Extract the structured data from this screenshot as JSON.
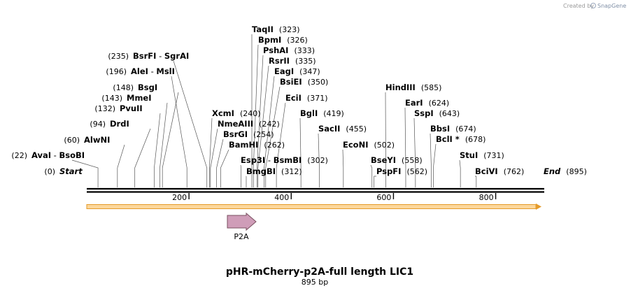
{
  "credit": {
    "prefix": "Created by",
    "brand": "SnapGene"
  },
  "map": {
    "title": "pHR-mCherry-p2A-full length LIC1",
    "length_text": "895 bp",
    "bp_total": 895,
    "ticks": [
      200,
      400,
      600,
      800
    ],
    "sites": [
      {
        "names": [
          "Start"
        ],
        "pos": 0,
        "italic": true,
        "level": 0
      },
      {
        "names": [
          "AvaI",
          "BsoBI"
        ],
        "pos": 22,
        "level": 1
      },
      {
        "names": [
          "AlwNI"
        ],
        "pos": 60,
        "level": 2
      },
      {
        "names": [
          "DrdI"
        ],
        "pos": 94,
        "level": 3
      },
      {
        "names": [
          "PvuII"
        ],
        "pos": 132,
        "level": 4
      },
      {
        "names": [
          "MmeI"
        ],
        "pos": 143,
        "level": 5
      },
      {
        "names": [
          "BsgI"
        ],
        "pos": 148,
        "level": 6
      },
      {
        "names": [
          "AleI",
          "MslI"
        ],
        "pos": 196,
        "level": 7
      },
      {
        "names": [
          "BsrFI",
          "SgrAI"
        ],
        "pos": 235,
        "level": 8
      },
      {
        "names": [
          "TaqII"
        ],
        "pos": 323,
        "level": 9
      },
      {
        "names": [
          "BpmI"
        ],
        "pos": 326,
        "level": 10
      },
      {
        "names": [
          "PshAI"
        ],
        "pos": 333,
        "level": 11
      },
      {
        "names": [
          "RsrII"
        ],
        "pos": 335,
        "level": 12
      },
      {
        "names": [
          "EagI"
        ],
        "pos": 347,
        "level": 13
      },
      {
        "names": [
          "BsiEI"
        ],
        "pos": 350,
        "level": 14
      },
      {
        "names": [
          "EciI"
        ],
        "pos": 371,
        "level": 15
      },
      {
        "names": [
          "XcmI"
        ],
        "pos": 240,
        "level": 16
      },
      {
        "names": [
          "NmeAIII"
        ],
        "pos": 242,
        "level": 17
      },
      {
        "names": [
          "BsrGI"
        ],
        "pos": 254,
        "level": 18
      },
      {
        "names": [
          "BamHI"
        ],
        "pos": 262,
        "level": 19
      },
      {
        "names": [
          "Esp3I",
          "BsmBI"
        ],
        "pos": 302,
        "level": 20
      },
      {
        "names": [
          "BmgBI"
        ],
        "pos": 312,
        "level": 21
      },
      {
        "names": [
          "BglI"
        ],
        "pos": 419,
        "level": 22
      },
      {
        "names": [
          "SacII"
        ],
        "pos": 455,
        "level": 23
      },
      {
        "names": [
          "EcoNI"
        ],
        "pos": 502,
        "level": 24
      },
      {
        "names": [
          "BseYI"
        ],
        "pos": 558,
        "level": 25
      },
      {
        "names": [
          "PspFI"
        ],
        "pos": 562,
        "level": 26
      },
      {
        "names": [
          "HindIII"
        ],
        "pos": 585,
        "level": 27
      },
      {
        "names": [
          "EarI"
        ],
        "pos": 624,
        "level": 28
      },
      {
        "names": [
          "SspI"
        ],
        "pos": 643,
        "level": 29
      },
      {
        "names": [
          "BbsI"
        ],
        "pos": 674,
        "level": 30
      },
      {
        "names": [
          "BclI *"
        ],
        "pos": 678,
        "level": 31
      },
      {
        "names": [
          "StuI"
        ],
        "pos": 731,
        "level": 32
      },
      {
        "names": [
          "BciVI"
        ],
        "pos": 762,
        "level": 33
      },
      {
        "names": [
          "End"
        ],
        "pos": 895,
        "italic": true,
        "level": 34
      }
    ],
    "features": [
      {
        "name": "mCherry-p2A region",
        "type": "orf",
        "from": 0,
        "to": 895,
        "color": "#f5b041",
        "shown_label": false
      },
      {
        "name": "P2A",
        "type": "misc",
        "from": 278,
        "to": 334,
        "color": "#d4a0b6",
        "shown_label": true
      }
    ],
    "colors": {
      "backbone": "#000000",
      "orf_fill": "#fcd79c",
      "orf_stroke": "#e59b2a",
      "p2a_fill": "#cf9db8",
      "p2a_stroke": "#7a5060",
      "leader": "#555555"
    }
  }
}
